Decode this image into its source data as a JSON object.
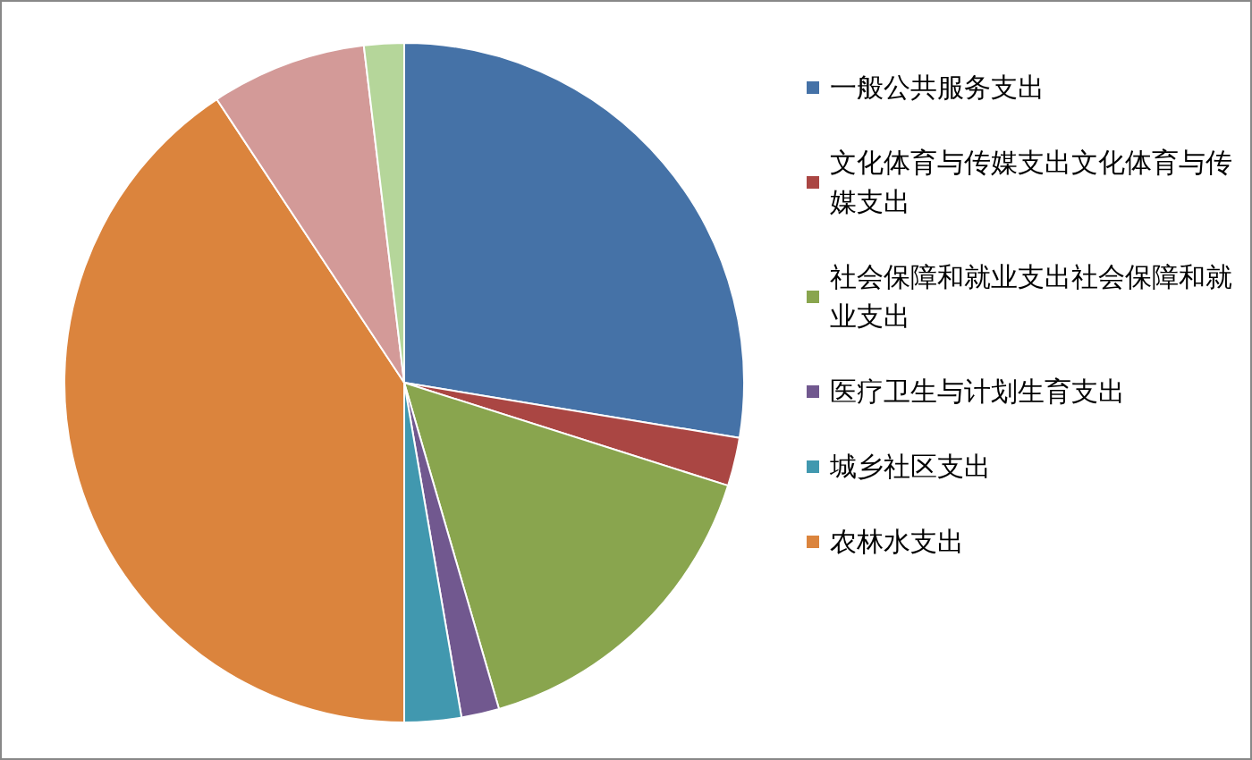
{
  "chart_data": {
    "type": "pie",
    "categories": [
      "一般公共服务支出",
      "文化体育与传媒支出文化体育与传媒支出",
      "社会保障和就业支出社会保障和就业支出",
      "医疗卫生与计划生育支出",
      "城乡社区支出",
      "农林水支出",
      null,
      null
    ],
    "values": [
      27.6,
      2.3,
      15.6,
      1.8,
      2.7,
      40.7,
      7.4,
      1.9
    ],
    "colors": [
      "#4572a7",
      "#aa4643",
      "#89a54e",
      "#71588f",
      "#4198af",
      "#db843d",
      "#d39a98",
      "#b5d69a"
    ],
    "legend": "right"
  }
}
